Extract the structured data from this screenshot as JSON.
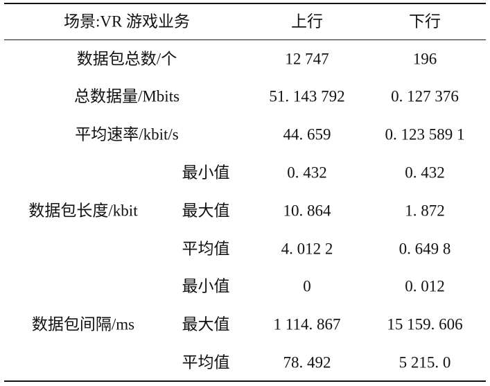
{
  "table": {
    "header": [
      "场景:VR 游戏业务",
      "上行",
      "下行"
    ],
    "rows": [
      [
        "数据包总数/个",
        "12 747",
        "196"
      ],
      [
        "总数据量/Mbits",
        "51. 143 792",
        "0. 127 376"
      ],
      [
        "平均速率/kbit/s",
        "44. 659",
        "0. 123 589 1"
      ]
    ],
    "groups": [
      {
        "label": "数据包长度/kbit",
        "rows": [
          [
            "最小值",
            "0. 432",
            "0. 432"
          ],
          [
            "最大值",
            "10. 864",
            "1. 872"
          ],
          [
            "平均值",
            "4. 012 2",
            "0. 649 8"
          ]
        ]
      },
      {
        "label": "数据包间隔/ms",
        "rows": [
          [
            "最小值",
            "0",
            "0. 012"
          ],
          [
            "最大值",
            "1 114. 867",
            "15 159. 606"
          ],
          [
            "平均值",
            "78. 492",
            "5 215. 0"
          ]
        ]
      }
    ]
  }
}
